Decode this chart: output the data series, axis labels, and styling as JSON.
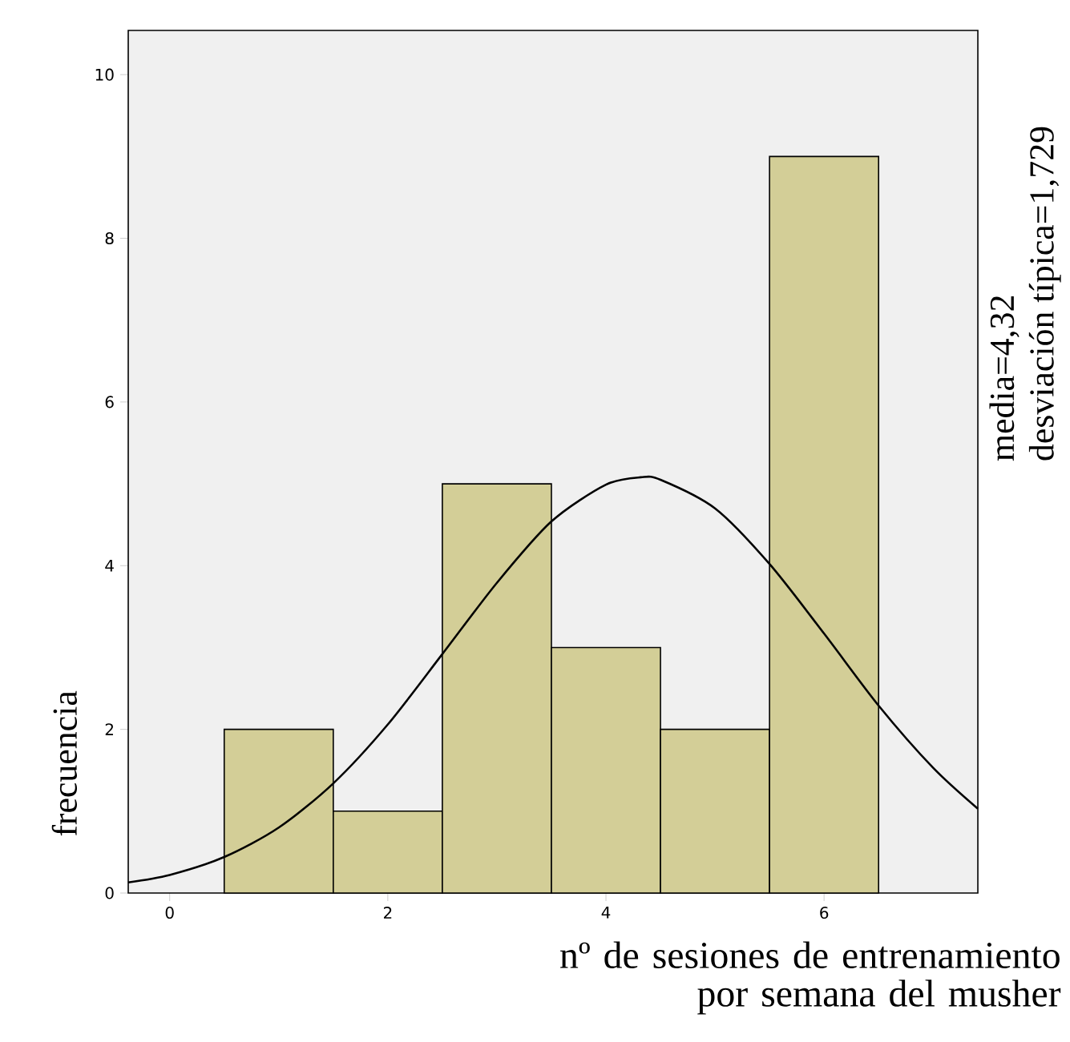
{
  "chart_data": {
    "type": "histogram",
    "xlabel": "nº de sesiones de entrenamiento por semana del musher",
    "ylabel": "frecuencia",
    "annotations": [
      "media=4,32",
      "desviación típica=1,729"
    ],
    "series": [
      {
        "type": "histogram",
        "color": "#d3ce97",
        "bins": [
          0.5,
          1.5,
          2.5,
          3.5,
          4.5,
          5.5,
          6.5
        ],
        "values": [
          2,
          1,
          5,
          3,
          2,
          9
        ]
      },
      {
        "type": "line",
        "color": "#000000",
        "x": [
          -0.38,
          0,
          0.5,
          1,
          1.5,
          2,
          2.5,
          3,
          3.5,
          4,
          4.32,
          4.5,
          5,
          5.5,
          6,
          6.5,
          7,
          7.41
        ],
        "values": [
          0.13,
          0.22,
          0.44,
          0.8,
          1.34,
          2.06,
          2.92,
          3.79,
          4.54,
          4.99,
          5.08,
          5.05,
          4.7,
          4.02,
          3.17,
          2.29,
          1.53,
          1.03
        ]
      }
    ],
    "xlim": [
      -0.38,
      7.41
    ],
    "ylim": [
      0,
      10.54
    ],
    "xticks": [
      0,
      2,
      4,
      6
    ],
    "yticks": [
      0,
      2,
      4,
      6,
      8,
      10
    ],
    "grid": false
  }
}
